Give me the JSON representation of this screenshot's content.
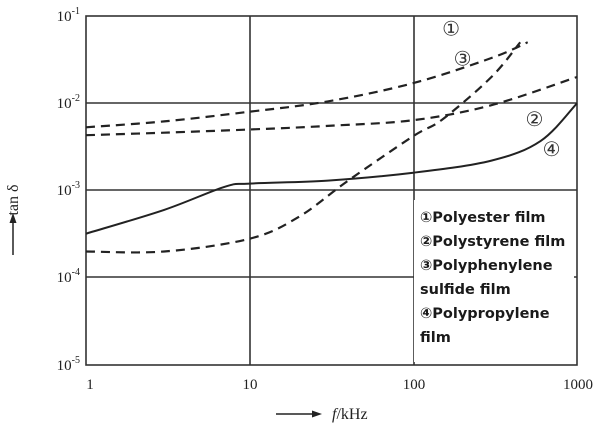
{
  "chart_data": {
    "type": "line",
    "title": "",
    "xlabel": "f/kHz",
    "ylabel": "tan δ",
    "xscale": "log",
    "yscale": "log",
    "xlim": [
      1,
      1000
    ],
    "ylim": [
      1e-05,
      0.1
    ],
    "grid": true,
    "x_ticks": [
      "1",
      "10",
      "100",
      "1000"
    ],
    "y_ticks": [
      {
        "base": "10",
        "exp": "-1"
      },
      {
        "base": "10",
        "exp": "-2"
      },
      {
        "base": "10",
        "exp": "-3"
      },
      {
        "base": "10",
        "exp": "-4"
      },
      {
        "base": "10",
        "exp": "-5"
      }
    ],
    "legend_position": "inside lower right",
    "series": [
      {
        "id": "1",
        "name": "Polyester film",
        "tag": "①",
        "style": "dashed",
        "x": [
          1,
          3,
          10,
          30,
          100,
          300,
          500
        ],
        "values": [
          0.0053,
          0.0062,
          0.008,
          0.0105,
          0.017,
          0.033,
          0.05
        ]
      },
      {
        "id": "2",
        "name": "Polystyrene film",
        "tag": "②",
        "style": "dashed",
        "x": [
          1,
          3,
          10,
          30,
          100,
          300,
          1000
        ],
        "values": [
          0.0043,
          0.0046,
          0.005,
          0.0055,
          0.0064,
          0.0095,
          0.02
        ]
      },
      {
        "id": "3",
        "name": "Polyphenylene sulfide film",
        "tag": "③",
        "style": "dashed",
        "x": [
          1,
          3,
          10,
          20,
          40,
          100,
          150,
          300,
          450
        ],
        "values": [
          0.0002,
          0.0002,
          0.00028,
          0.0005,
          0.0013,
          0.0042,
          0.0065,
          0.02,
          0.05
        ]
      },
      {
        "id": "4",
        "name": "Polypropylene film",
        "tag": "④",
        "style": "solid",
        "x": [
          1,
          3,
          7,
          10,
          30,
          100,
          300,
          600,
          1000
        ],
        "values": [
          0.00032,
          0.0006,
          0.0011,
          0.0012,
          0.0013,
          0.0016,
          0.0022,
          0.0037,
          0.01
        ]
      }
    ],
    "annotations": [
      {
        "text": "①",
        "x": 170,
        "y": 0.06
      },
      {
        "text": "③",
        "x": 200,
        "y": 0.027
      },
      {
        "text": "②",
        "x": 550,
        "y": 0.0055
      },
      {
        "text": "④",
        "x": 700,
        "y": 0.0025
      }
    ]
  },
  "axes": {
    "x_title": "f/kHz",
    "x_title_italic": "f",
    "x_title_unit": "/kHz",
    "y_title": "tan δ"
  },
  "legend": {
    "lines": [
      "①Polyester film",
      "②Polystyrene film",
      "③Polyphenylene",
      "sulfide film",
      "④Polypropylene",
      "film"
    ]
  },
  "colors": {
    "line": "#222222",
    "grid": "#333333",
    "background": "#ffffff"
  }
}
